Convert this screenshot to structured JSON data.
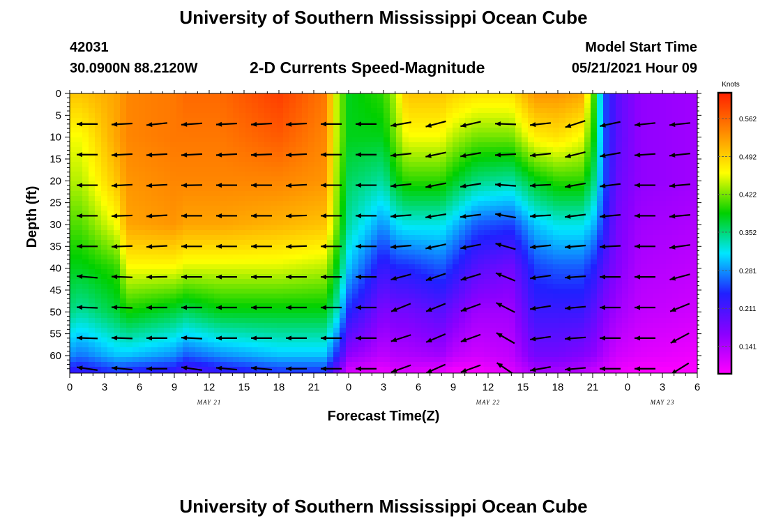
{
  "header": {
    "title": "University of Southern Mississippi Ocean Cube",
    "station_id": "42031",
    "coordinates": "30.0900N  88.2120W",
    "subtitle": "2-D Currents Speed-Magnitude",
    "model_start_label": "Model Start Time",
    "model_start_value": "05/21/2021 Hour 09"
  },
  "footer": {
    "title": "University of Southern Mississippi Ocean Cube"
  },
  "chart_data": {
    "type": "heatmap",
    "title": "2-D Currents Speed-Magnitude",
    "xlabel": "Forecast Time(Z)",
    "ylabel": "Depth (ft)",
    "x_hours_range": [
      0,
      54
    ],
    "y_range": [
      0,
      64
    ],
    "x_ticks": [
      {
        "h": 0,
        "label": "0"
      },
      {
        "h": 3,
        "label": "3"
      },
      {
        "h": 6,
        "label": "6"
      },
      {
        "h": 9,
        "label": "9"
      },
      {
        "h": 12,
        "label": "12"
      },
      {
        "h": 15,
        "label": "15"
      },
      {
        "h": 18,
        "label": "18"
      },
      {
        "h": 21,
        "label": "21"
      },
      {
        "h": 24,
        "label": "0"
      },
      {
        "h": 27,
        "label": "3"
      },
      {
        "h": 30,
        "label": "6"
      },
      {
        "h": 33,
        "label": "9"
      },
      {
        "h": 36,
        "label": "12"
      },
      {
        "h": 39,
        "label": "15"
      },
      {
        "h": 42,
        "label": "18"
      },
      {
        "h": 45,
        "label": "21"
      },
      {
        "h": 48,
        "label": "0"
      },
      {
        "h": 51,
        "label": "3"
      },
      {
        "h": 54,
        "label": "6"
      }
    ],
    "y_ticks": [
      0,
      5,
      10,
      15,
      20,
      25,
      30,
      35,
      40,
      45,
      50,
      55,
      60
    ],
    "date_labels": [
      {
        "h": 12,
        "label": "MAY 21"
      },
      {
        "h": 36,
        "label": "MAY 22"
      },
      {
        "h": 51,
        "label": "MAY 23"
      }
    ],
    "colorbar": {
      "units": "Knots",
      "range": [
        0.09,
        0.61
      ],
      "ticks": [
        0.562,
        0.492,
        0.422,
        0.352,
        0.281,
        0.211,
        0.141
      ],
      "colors": [
        "#ff00ff",
        "#8a00ff",
        "#2020ff",
        "#00e6ff",
        "#00d000",
        "#ffff00",
        "#ff8c00",
        "#ff2000"
      ]
    },
    "speed_columns": {
      "depths": [
        0,
        10,
        20,
        30,
        40,
        50,
        60,
        64
      ],
      "columns": [
        {
          "h": 0,
          "speed": [
            0.5,
            0.46,
            0.44,
            0.41,
            0.38,
            0.35,
            0.28,
            0.22
          ]
        },
        {
          "h": 1,
          "speed": [
            0.5,
            0.46,
            0.44,
            0.41,
            0.38,
            0.34,
            0.27,
            0.22
          ]
        },
        {
          "h": 4,
          "speed": [
            0.52,
            0.52,
            0.5,
            0.46,
            0.4,
            0.37,
            0.3,
            0.24
          ]
        },
        {
          "h": 5,
          "speed": [
            0.54,
            0.54,
            0.53,
            0.52,
            0.46,
            0.39,
            0.3,
            0.23
          ]
        },
        {
          "h": 9,
          "speed": [
            0.55,
            0.55,
            0.54,
            0.53,
            0.46,
            0.37,
            0.28,
            0.22
          ]
        },
        {
          "h": 10,
          "speed": [
            0.56,
            0.55,
            0.54,
            0.52,
            0.45,
            0.36,
            0.26,
            0.2
          ]
        },
        {
          "h": 13,
          "speed": [
            0.56,
            0.55,
            0.54,
            0.52,
            0.45,
            0.38,
            0.28,
            0.22
          ]
        },
        {
          "h": 18,
          "speed": [
            0.59,
            0.57,
            0.54,
            0.51,
            0.45,
            0.38,
            0.3,
            0.24
          ]
        },
        {
          "h": 22,
          "speed": [
            0.55,
            0.54,
            0.53,
            0.5,
            0.44,
            0.38,
            0.3,
            0.24
          ]
        },
        {
          "h": 23,
          "speed": [
            0.44,
            0.44,
            0.43,
            0.42,
            0.38,
            0.33,
            0.24,
            0.17
          ]
        },
        {
          "h": 24,
          "speed": [
            0.38,
            0.38,
            0.36,
            0.34,
            0.3,
            0.24,
            0.16,
            0.11
          ]
        },
        {
          "h": 27,
          "speed": [
            0.4,
            0.38,
            0.34,
            0.28,
            0.22,
            0.17,
            0.13,
            0.1
          ]
        },
        {
          "h": 28,
          "speed": [
            0.44,
            0.42,
            0.38,
            0.31,
            0.24,
            0.18,
            0.14,
            0.11
          ]
        },
        {
          "h": 29,
          "speed": [
            0.5,
            0.46,
            0.4,
            0.32,
            0.24,
            0.18,
            0.14,
            0.11
          ]
        },
        {
          "h": 32,
          "speed": [
            0.5,
            0.46,
            0.4,
            0.32,
            0.26,
            0.2,
            0.15,
            0.1
          ]
        },
        {
          "h": 33,
          "speed": [
            0.49,
            0.44,
            0.38,
            0.3,
            0.24,
            0.18,
            0.13,
            0.09
          ]
        },
        {
          "h": 35,
          "speed": [
            0.48,
            0.42,
            0.35,
            0.26,
            0.2,
            0.15,
            0.12,
            0.09
          ]
        },
        {
          "h": 38,
          "speed": [
            0.48,
            0.42,
            0.34,
            0.25,
            0.18,
            0.15,
            0.13,
            0.11
          ]
        },
        {
          "h": 40,
          "speed": [
            0.53,
            0.47,
            0.38,
            0.3,
            0.25,
            0.22,
            0.18,
            0.14
          ]
        },
        {
          "h": 42,
          "speed": [
            0.53,
            0.48,
            0.4,
            0.32,
            0.26,
            0.22,
            0.18,
            0.14
          ]
        },
        {
          "h": 44,
          "speed": [
            0.52,
            0.46,
            0.4,
            0.32,
            0.26,
            0.22,
            0.17,
            0.13
          ]
        },
        {
          "h": 45,
          "speed": [
            0.42,
            0.4,
            0.36,
            0.3,
            0.24,
            0.2,
            0.16,
            0.12
          ]
        },
        {
          "h": 46,
          "speed": [
            0.26,
            0.26,
            0.26,
            0.24,
            0.2,
            0.17,
            0.14,
            0.11
          ]
        },
        {
          "h": 47,
          "speed": [
            0.2,
            0.2,
            0.19,
            0.18,
            0.17,
            0.15,
            0.12,
            0.1
          ]
        },
        {
          "h": 49,
          "speed": [
            0.16,
            0.16,
            0.16,
            0.15,
            0.14,
            0.13,
            0.11,
            0.09
          ]
        },
        {
          "h": 54,
          "speed": [
            0.15,
            0.15,
            0.15,
            0.14,
            0.13,
            0.12,
            0.1,
            0.09
          ]
        }
      ]
    },
    "vectors": {
      "times_h": [
        1.5,
        4.5,
        7.5,
        10.5,
        13.5,
        16.5,
        19.5,
        22.5,
        25.5,
        28.5,
        31.5,
        34.5,
        37.5,
        40.5,
        43.5,
        46.5,
        49.5,
        52.5
      ],
      "depths_ft": [
        7,
        14,
        21,
        28,
        35,
        42,
        49,
        56,
        63
      ],
      "direction_deg": [
        [
          180,
          183,
          186,
          184,
          183,
          183,
          183,
          180,
          180,
          190,
          195,
          193,
          178,
          186,
          198,
          192,
          186,
          186
        ],
        [
          180,
          183,
          183,
          183,
          183,
          182,
          183,
          180,
          180,
          186,
          192,
          190,
          183,
          186,
          194,
          190,
          184,
          186
        ],
        [
          180,
          183,
          183,
          181,
          180,
          180,
          183,
          180,
          180,
          186,
          191,
          189,
          176,
          183,
          190,
          187,
          180,
          185
        ],
        [
          180,
          182,
          183,
          180,
          180,
          180,
          182,
          180,
          180,
          184,
          189,
          187,
          170,
          183,
          187,
          185,
          180,
          185
        ],
        [
          180,
          182,
          183,
          180,
          180,
          180,
          182,
          180,
          180,
          185,
          192,
          191,
          164,
          186,
          185,
          183,
          180,
          188
        ],
        [
          175,
          178,
          181,
          180,
          180,
          180,
          180,
          180,
          180,
          195,
          199,
          197,
          158,
          188,
          184,
          180,
          180,
          195
        ],
        [
          178,
          178,
          180,
          180,
          180,
          180,
          180,
          180,
          180,
          202,
          202,
          200,
          153,
          189,
          185,
          180,
          180,
          202
        ],
        [
          178,
          178,
          180,
          177,
          180,
          180,
          180,
          180,
          180,
          198,
          203,
          200,
          150,
          188,
          184,
          180,
          180,
          208
        ],
        [
          172,
          175,
          180,
          172,
          175,
          175,
          180,
          180,
          180,
          200,
          204,
          200,
          146,
          190,
          185,
          180,
          180,
          212
        ]
      ]
    }
  }
}
